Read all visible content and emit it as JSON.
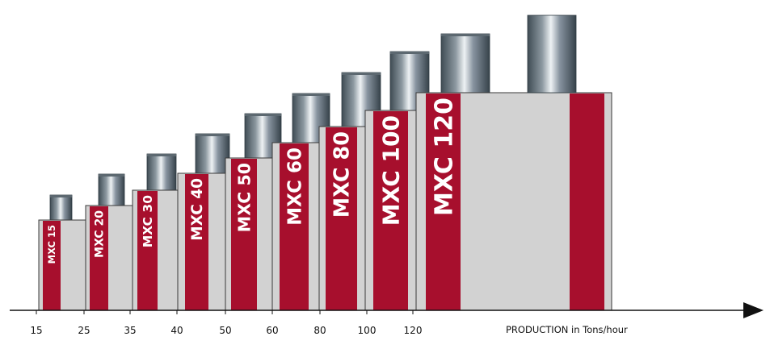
{
  "diagram": {
    "axis_label": "PRODUCTION in Tons/hour",
    "colors": {
      "box_fill": "#d2d2d2",
      "box_stroke": "#3a3a3a",
      "stripe": "#a70f2d",
      "label_text": "#ffffff",
      "axis": "#111111",
      "tick_text": "#111111"
    },
    "tick_labels": [
      "15",
      "25",
      "35",
      "40",
      "50",
      "60",
      "80",
      "100",
      "120"
    ],
    "models": [
      {
        "name": "MXC 15",
        "production_from": 15,
        "production_to": 25
      },
      {
        "name": "MXC 20",
        "production_from": 25,
        "production_to": 35
      },
      {
        "name": "MXC 30",
        "production_from": 35,
        "production_to": 40
      },
      {
        "name": "MXC 40",
        "production_from": 40,
        "production_to": 50
      },
      {
        "name": "MXC 50",
        "production_from": 50,
        "production_to": 60
      },
      {
        "name": "MXC 60",
        "production_from": 60,
        "production_to": 80
      },
      {
        "name": "MXC 80",
        "production_from": 80,
        "production_to": 100
      },
      {
        "name": "MXC 100",
        "production_from": 100,
        "production_to": 120
      },
      {
        "name": "MXC 120",
        "production_from": 120,
        "production_to": null
      }
    ]
  }
}
